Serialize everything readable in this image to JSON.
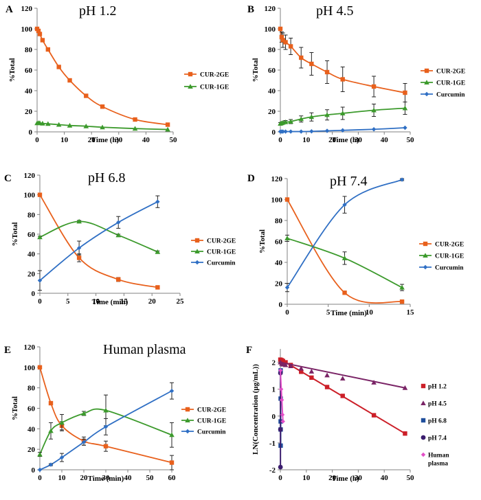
{
  "colors": {
    "CUR-2GE": "#e8601c",
    "CUR-1GE": "#3c9a2c",
    "Curcumin": "#2f6fc4",
    "pH 1.2": "#cc1f28",
    "pH 4.5": "#7a2466",
    "pH 6.8": "#1f4e9c",
    "pH 7.4": "#3b1d6e",
    "Human plasma": "#e34fc8",
    "axis": "#808080"
  },
  "chart_data": [
    {
      "id": "A",
      "letter": "A",
      "type": "line",
      "title": "pH 1.2",
      "xlabel": "Time (h)",
      "ylabel": "%Total",
      "xlim": [
        0,
        50
      ],
      "ylim": [
        0,
        120
      ],
      "xticks": [
        "0",
        "10",
        "20",
        "30",
        "40",
        "50"
      ],
      "yticks": [
        "0",
        "20",
        "40",
        "60",
        "80",
        "100",
        "120"
      ],
      "series": [
        {
          "name": "CUR-2GE",
          "marker": "square",
          "x": [
            0,
            0.5,
            1,
            2,
            4,
            8,
            12,
            18,
            24,
            36,
            48
          ],
          "y": [
            100,
            98,
            95,
            89,
            80,
            63,
            50,
            35,
            24.5,
            12,
            7
          ],
          "err": [
            0,
            0,
            0,
            0,
            0,
            0,
            0,
            0,
            0,
            0,
            0
          ]
        },
        {
          "name": "CUR-1GE",
          "marker": "triangle",
          "x": [
            0,
            0.5,
            1,
            2,
            4,
            8,
            12,
            18,
            24,
            36,
            48
          ],
          "y": [
            8.5,
            8.7,
            8.6,
            8.2,
            7.8,
            7,
            6.2,
            5.5,
            4.5,
            3.2,
            2.3
          ],
          "err": [
            0,
            0,
            0,
            0,
            0,
            0,
            0,
            0,
            0,
            0,
            0
          ]
        }
      ]
    },
    {
      "id": "B",
      "letter": "B",
      "type": "line",
      "title": "pH 4.5",
      "xlabel": "Time (h)",
      "ylabel": "%Total",
      "xlim": [
        0,
        50
      ],
      "ylim": [
        0,
        120
      ],
      "xticks": [
        "0",
        "10",
        "20",
        "30",
        "40",
        "50"
      ],
      "yticks": [
        "0",
        "20",
        "40",
        "60",
        "80",
        "100",
        "120"
      ],
      "series": [
        {
          "name": "CUR-2GE",
          "marker": "square",
          "x": [
            0,
            0.5,
            1,
            2,
            4,
            8,
            12,
            18,
            24,
            36,
            48
          ],
          "y": [
            100,
            92,
            89,
            87,
            83,
            72,
            66,
            58,
            51,
            44,
            38
          ],
          "err": [
            0,
            5,
            7,
            7,
            8,
            10,
            11,
            11,
            12,
            10,
            9
          ]
        },
        {
          "name": "CUR-1GE",
          "marker": "triangle",
          "x": [
            0,
            0.5,
            1,
            2,
            4,
            8,
            12,
            18,
            24,
            36,
            48
          ],
          "y": [
            8,
            8.5,
            9,
            9.5,
            10,
            12.5,
            14.5,
            16.5,
            18,
            21,
            23
          ],
          "err": [
            1,
            1,
            1,
            1.5,
            2,
            3,
            4,
            5,
            6,
            6,
            6
          ]
        },
        {
          "name": "Curcumin",
          "marker": "diamond",
          "x": [
            0,
            0.5,
            1,
            2,
            4,
            8,
            12,
            18,
            24,
            36,
            48
          ],
          "y": [
            0.3,
            0.3,
            0.3,
            0.3,
            0.3,
            0.3,
            0.5,
            1,
            1.5,
            2.5,
            4
          ],
          "err": [
            0,
            0,
            0,
            0,
            0,
            0,
            0,
            0,
            0,
            0,
            0
          ]
        }
      ]
    },
    {
      "id": "C",
      "letter": "C",
      "type": "line",
      "title": "pH 6.8",
      "xlabel": "Time (min)",
      "ylabel": "%Total",
      "xlim": [
        0,
        25
      ],
      "ylim": [
        0,
        120
      ],
      "xticks": [
        "0",
        "5",
        "10",
        "15",
        "20",
        "25"
      ],
      "yticks": [
        "0",
        "20",
        "40",
        "60",
        "80",
        "100",
        "120"
      ],
      "series": [
        {
          "name": "CUR-2GE",
          "marker": "square",
          "x": [
            0,
            7,
            14,
            21
          ],
          "y": [
            100,
            36,
            14,
            6
          ],
          "err": [
            0,
            4,
            2,
            1
          ]
        },
        {
          "name": "CUR-1GE",
          "marker": "triangle",
          "x": [
            0,
            7,
            14,
            21
          ],
          "y": [
            57,
            73,
            59,
            42
          ],
          "err": [
            1,
            1,
            1,
            1
          ]
        },
        {
          "name": "Curcumin",
          "marker": "diamond",
          "x": [
            0,
            7,
            14,
            21
          ],
          "y": [
            13,
            46,
            72,
            93
          ],
          "err": [
            10,
            7,
            6,
            6
          ]
        }
      ]
    },
    {
      "id": "D",
      "letter": "D",
      "type": "line",
      "title": "pH 7.4",
      "xlabel": "Time (min)",
      "ylabel": "%Total",
      "xlim": [
        0,
        15
      ],
      "ylim": [
        0,
        120
      ],
      "xticks": [
        "0",
        "5",
        "10",
        "15"
      ],
      "yticks": [
        "0",
        "20",
        "40",
        "60",
        "80",
        "100",
        "120"
      ],
      "series": [
        {
          "name": "CUR-2GE",
          "marker": "square",
          "x": [
            0,
            7,
            14
          ],
          "y": [
            100,
            11,
            2.5
          ],
          "err": [
            0,
            1,
            0.5
          ]
        },
        {
          "name": "CUR-1GE",
          "marker": "triangle",
          "x": [
            0,
            7,
            14
          ],
          "y": [
            63,
            44,
            16
          ],
          "err": [
            3,
            6,
            3
          ]
        },
        {
          "name": "Curcumin",
          "marker": "diamond",
          "x": [
            0,
            7,
            14
          ],
          "y": [
            16,
            95,
            119
          ],
          "err": [
            4,
            8,
            1
          ]
        }
      ]
    },
    {
      "id": "E",
      "letter": "E",
      "type": "line",
      "title": "Human plasma",
      "xlabel": "Time (min)",
      "ylabel": "%Total",
      "xlim": [
        0,
        60
      ],
      "ylim": [
        0,
        120
      ],
      "xticks": [
        "0",
        "10",
        "20",
        "30",
        "40",
        "50",
        "60"
      ],
      "yticks": [
        "0",
        "20",
        "40",
        "60",
        "80",
        "100",
        "120"
      ],
      "series": [
        {
          "name": "CUR-2GE",
          "marker": "square",
          "x": [
            0,
            5,
            10,
            20,
            30,
            60
          ],
          "y": [
            100,
            65,
            43,
            28,
            23,
            7
          ],
          "err": [
            0,
            1,
            4,
            4,
            5,
            7
          ]
        },
        {
          "name": "CUR-1GE",
          "marker": "triangle",
          "x": [
            0,
            5,
            10,
            20,
            30,
            60
          ],
          "y": [
            15,
            38,
            46,
            55,
            58,
            34
          ],
          "err": [
            2,
            8,
            8,
            2,
            15,
            12
          ]
        },
        {
          "name": "Curcumin",
          "marker": "diamond",
          "x": [
            0,
            5,
            10,
            20,
            30,
            60
          ],
          "y": [
            0,
            5,
            12,
            27,
            42,
            77
          ],
          "err": [
            0,
            1,
            4,
            3,
            8,
            8
          ]
        }
      ]
    },
    {
      "id": "F",
      "letter": "F",
      "type": "scatter",
      "title": "",
      "xlabel": "Time (h)",
      "ylabel": "LN(Concentration (µg/mL))",
      "xlim": [
        0,
        50
      ],
      "ylim": [
        -2,
        2.5
      ],
      "xticks": [
        "0",
        "10",
        "20",
        "30",
        "40",
        "50"
      ],
      "yticks": [
        "-2",
        "-1",
        "0",
        "1",
        "2"
      ],
      "ytick_values": [
        -2,
        -1,
        0,
        1,
        2
      ],
      "series": [
        {
          "name": "pH 1.2",
          "marker": "square",
          "x": [
            0,
            0.5,
            1,
            2,
            4,
            8,
            12,
            18,
            24,
            36,
            48
          ],
          "y": [
            2.1,
            2.08,
            2.05,
            2.0,
            1.9,
            1.65,
            1.43,
            1.08,
            0.75,
            0.03,
            -0.65
          ],
          "fit": [
            [
              0,
              2.12
            ],
            [
              48,
              -0.65
            ]
          ]
        },
        {
          "name": "pH 4.5",
          "marker": "triangle",
          "x": [
            0,
            0.5,
            1,
            2,
            4,
            8,
            12,
            18,
            24,
            36,
            48
          ],
          "y": [
            2.0,
            1.95,
            1.92,
            1.9,
            1.86,
            1.77,
            1.66,
            1.52,
            1.4,
            1.25,
            1.05
          ],
          "fit": [
            [
              0,
              2.0
            ],
            [
              48,
              1.05
            ]
          ]
        },
        {
          "name": "pH 6.8",
          "marker": "square",
          "x": [
            0.117,
            0.117,
            0.117,
            0.117,
            0.117
          ],
          "y": [
            1.7,
            0.65,
            -0.2,
            -0.5,
            -1.1
          ],
          "fit": [
            [
              0.12,
              1.7
            ],
            [
              0.12,
              -1.1
            ]
          ]
        },
        {
          "name": "pH 7.4",
          "marker": "circle",
          "x": [
            0.04,
            0.04,
            0.04
          ],
          "y": [
            1.6,
            -0.5,
            -1.9
          ],
          "fit": [
            [
              0.04,
              1.6
            ],
            [
              0.04,
              -1.9
            ]
          ]
        },
        {
          "name": "Human plasma",
          "label_lines": [
            "Human",
            "plasma"
          ],
          "marker": "diamond",
          "x": [
            0.05,
            0.3,
            0.55,
            0.8,
            1.0
          ],
          "y": [
            1.7,
            1.0,
            0.6,
            0.05,
            -0.2
          ],
          "fit": [
            [
              0,
              1.7
            ],
            [
              1.0,
              -0.2
            ]
          ]
        }
      ]
    }
  ]
}
